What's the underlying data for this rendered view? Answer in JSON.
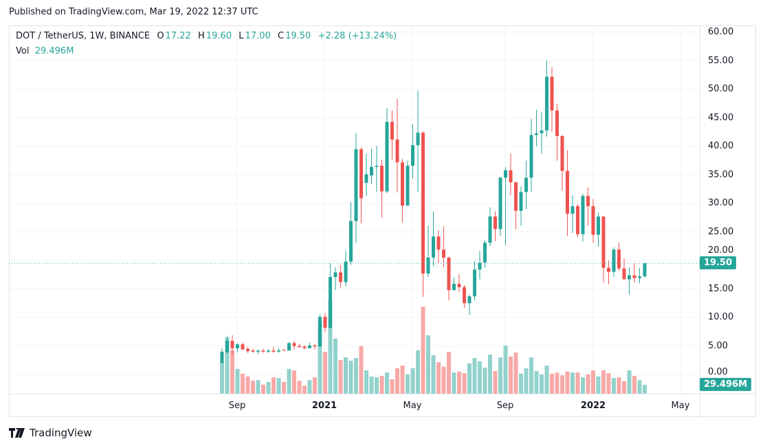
{
  "published": "Published on TradingView.com, Mar 19, 2022 12:37 UTC",
  "legend": {
    "symbol": "DOT / TetherUS, 1W, BINANCE",
    "o_label": "O",
    "o": "17.22",
    "h_label": "H",
    "h": "19.60",
    "l_label": "L",
    "l": "17.00",
    "c_label": "C",
    "c": "19.50",
    "change": "+2.28 (+13.24%)",
    "vol_label": "Vol",
    "vol": "29.496M"
  },
  "last_price_tag": "19.50",
  "last_volume_tag": "29.496M",
  "brand": "TradingView",
  "colors": {
    "up": "#26a69a",
    "down": "#ef5350",
    "up_vol": "#92d2cc",
    "down_vol": "#f7a9a7",
    "grid": "#f0f3fa"
  },
  "chart_data": {
    "type": "candlestick",
    "interval": "1W",
    "ylim": [
      -3,
      62
    ],
    "y_ticks": [
      "60.00",
      "55.00",
      "50.00",
      "45.00",
      "40.00",
      "35.00",
      "30.00",
      "25.00",
      "20.00",
      "15.00",
      "10.00",
      "5.00",
      "0.00"
    ],
    "x_ticks": [
      "Sep",
      "2021",
      "May",
      "Sep",
      "2022",
      "May"
    ],
    "grid": true,
    "dates": [
      "2020-08-17",
      "2020-08-24",
      "2020-08-31",
      "2020-09-07",
      "2020-09-14",
      "2020-09-21",
      "2020-09-28",
      "2020-10-05",
      "2020-10-12",
      "2020-10-19",
      "2020-10-26",
      "2020-11-02",
      "2020-11-09",
      "2020-11-16",
      "2020-11-23",
      "2020-11-30",
      "2020-12-07",
      "2020-12-14",
      "2020-12-21",
      "2020-12-28",
      "2021-01-04",
      "2021-01-11",
      "2021-01-18",
      "2021-01-25",
      "2021-02-01",
      "2021-02-08",
      "2021-02-15",
      "2021-02-22",
      "2021-03-01",
      "2021-03-08",
      "2021-03-15",
      "2021-03-22",
      "2021-03-29",
      "2021-04-05",
      "2021-04-12",
      "2021-04-19",
      "2021-04-26",
      "2021-05-03",
      "2021-05-10",
      "2021-05-17",
      "2021-05-24",
      "2021-05-31",
      "2021-06-07",
      "2021-06-14",
      "2021-06-21",
      "2021-06-28",
      "2021-07-05",
      "2021-07-12",
      "2021-07-19",
      "2021-07-26",
      "2021-08-02",
      "2021-08-09",
      "2021-08-16",
      "2021-08-23",
      "2021-08-30",
      "2021-09-06",
      "2021-09-13",
      "2021-09-20",
      "2021-09-27",
      "2021-10-04",
      "2021-10-11",
      "2021-10-18",
      "2021-10-25",
      "2021-11-01",
      "2021-11-08",
      "2021-11-15",
      "2021-11-22",
      "2021-11-29",
      "2021-12-06",
      "2021-12-13",
      "2021-12-20",
      "2021-12-27",
      "2022-01-03",
      "2022-01-10",
      "2022-01-17",
      "2022-01-24",
      "2022-01-31",
      "2022-02-07",
      "2022-02-14",
      "2022-02-21",
      "2022-02-28",
      "2022-03-07",
      "2022-03-14"
    ],
    "ohlc": [
      [
        2.0,
        4.6,
        2.0,
        4.0
      ],
      [
        3.9,
        6.7,
        3.7,
        5.9
      ],
      [
        5.9,
        6.9,
        3.4,
        4.6
      ],
      [
        4.6,
        5.5,
        3.9,
        5.3
      ],
      [
        5.3,
        5.6,
        4.3,
        4.4
      ],
      [
        4.5,
        4.8,
        3.8,
        4.1
      ],
      [
        4.2,
        4.5,
        3.8,
        4.0
      ],
      [
        4.0,
        4.3,
        3.6,
        4.2
      ],
      [
        4.2,
        4.5,
        3.8,
        4.0
      ],
      [
        4.0,
        4.4,
        3.8,
        4.2
      ],
      [
        4.2,
        4.9,
        3.8,
        4.0
      ],
      [
        4.0,
        4.6,
        3.8,
        4.2
      ],
      [
        4.3,
        4.5,
        4.1,
        4.2
      ],
      [
        4.2,
        5.7,
        4.2,
        5.5
      ],
      [
        5.5,
        5.9,
        4.4,
        5.0
      ],
      [
        5.0,
        5.4,
        4.7,
        4.8
      ],
      [
        4.9,
        5.1,
        4.4,
        4.6
      ],
      [
        4.6,
        5.6,
        4.6,
        5.1
      ],
      [
        5.1,
        5.3,
        4.4,
        4.9
      ],
      [
        4.9,
        10.5,
        4.9,
        10.1
      ],
      [
        10.1,
        10.8,
        7.5,
        8.2
      ],
      [
        8.2,
        19.5,
        8.0,
        17.1
      ],
      [
        17.1,
        18.8,
        14.8,
        17.9
      ],
      [
        17.9,
        19.2,
        15.2,
        16.2
      ],
      [
        16.2,
        21.7,
        15.4,
        19.8
      ],
      [
        19.8,
        30.2,
        19.2,
        26.9
      ],
      [
        26.9,
        42.3,
        23.1,
        39.5
      ],
      [
        39.5,
        39.8,
        26.5,
        30.9
      ],
      [
        33.6,
        38.7,
        31.3,
        35.1
      ],
      [
        34.9,
        39.6,
        33.4,
        36.4
      ],
      [
        36.4,
        40.1,
        32.0,
        36.6
      ],
      [
        36.6,
        37.7,
        27.5,
        32.1
      ],
      [
        32.1,
        46.7,
        31.8,
        44.3
      ],
      [
        44.3,
        46.3,
        37.7,
        41.2
      ],
      [
        41.2,
        48.3,
        31.9,
        37.2
      ],
      [
        37.2,
        37.8,
        26.6,
        29.6
      ],
      [
        29.6,
        37.5,
        29.6,
        36.6
      ],
      [
        36.6,
        43.9,
        34.3,
        40.2
      ],
      [
        40.2,
        49.8,
        32.0,
        42.4
      ],
      [
        42.4,
        42.6,
        13.6,
        17.7
      ],
      [
        17.7,
        26.1,
        17.1,
        20.5
      ],
      [
        20.5,
        28.6,
        19.0,
        24.2
      ],
      [
        24.2,
        25.3,
        19.5,
        21.9
      ],
      [
        21.9,
        26.0,
        18.8,
        20.5
      ],
      [
        20.5,
        20.7,
        13.0,
        14.8
      ],
      [
        14.8,
        17.0,
        14.7,
        15.9
      ],
      [
        15.9,
        17.6,
        14.5,
        15.3
      ],
      [
        15.3,
        15.7,
        11.7,
        12.5
      ],
      [
        12.5,
        14.0,
        10.4,
        13.7
      ],
      [
        13.7,
        19.9,
        13.0,
        18.4
      ],
      [
        18.4,
        21.7,
        16.7,
        19.6
      ],
      [
        19.6,
        23.5,
        18.7,
        23.1
      ],
      [
        23.1,
        29.3,
        22.5,
        27.7
      ],
      [
        27.7,
        28.6,
        23.4,
        25.5
      ],
      [
        25.5,
        34.7,
        24.3,
        34.5
      ],
      [
        34.5,
        36.4,
        22.7,
        35.8
      ],
      [
        35.8,
        38.8,
        31.4,
        33.7
      ],
      [
        33.7,
        33.8,
        25.4,
        28.7
      ],
      [
        28.7,
        33.0,
        26.1,
        32.0
      ],
      [
        32.0,
        37.5,
        29.0,
        34.5
      ],
      [
        34.5,
        44.8,
        32.0,
        42.0
      ],
      [
        42.0,
        46.4,
        40.0,
        42.3
      ],
      [
        42.3,
        46.0,
        38.7,
        42.8
      ],
      [
        42.8,
        55.1,
        41.7,
        52.2
      ],
      [
        52.2,
        53.9,
        42.5,
        46.3
      ],
      [
        46.3,
        47.5,
        37.5,
        41.8
      ],
      [
        41.8,
        42.0,
        32.2,
        35.7
      ],
      [
        35.7,
        39.3,
        24.3,
        28.2
      ],
      [
        28.2,
        31.4,
        24.8,
        29.5
      ],
      [
        29.5,
        29.9,
        24.1,
        24.6
      ],
      [
        24.6,
        31.7,
        23.3,
        31.3
      ],
      [
        31.3,
        32.8,
        26.1,
        29.5
      ],
      [
        29.5,
        30.8,
        23.1,
        24.5
      ],
      [
        24.5,
        28.4,
        22.4,
        27.7
      ],
      [
        27.7,
        27.7,
        16.1,
        18.7
      ],
      [
        18.7,
        20.0,
        15.8,
        18.0
      ],
      [
        18.0,
        22.3,
        17.1,
        21.9
      ],
      [
        21.9,
        23.1,
        18.2,
        18.6
      ],
      [
        18.6,
        20.4,
        16.6,
        16.7
      ],
      [
        16.7,
        18.8,
        14.0,
        17.4
      ],
      [
        17.4,
        19.5,
        16.1,
        16.9
      ],
      [
        16.9,
        18.7,
        16.0,
        17.2
      ],
      [
        17.22,
        19.6,
        17.0,
        19.5
      ]
    ],
    "volume_millions": [
      102,
      186,
      143,
      82,
      66,
      57,
      43,
      45,
      30,
      39,
      54,
      52,
      39,
      82,
      77,
      43,
      27,
      45,
      54,
      241,
      138,
      306,
      182,
      111,
      120,
      109,
      118,
      157,
      77,
      57,
      54,
      59,
      70,
      48,
      84,
      93,
      64,
      84,
      143,
      288,
      193,
      127,
      104,
      89,
      138,
      70,
      73,
      68,
      100,
      118,
      107,
      86,
      129,
      75,
      120,
      159,
      123,
      136,
      66,
      84,
      120,
      75,
      64,
      93,
      66,
      70,
      61,
      73,
      70,
      70,
      54,
      64,
      77,
      57,
      77,
      68,
      52,
      54,
      41,
      77,
      59,
      45,
      29.5
    ],
    "last_price": 19.5
  }
}
